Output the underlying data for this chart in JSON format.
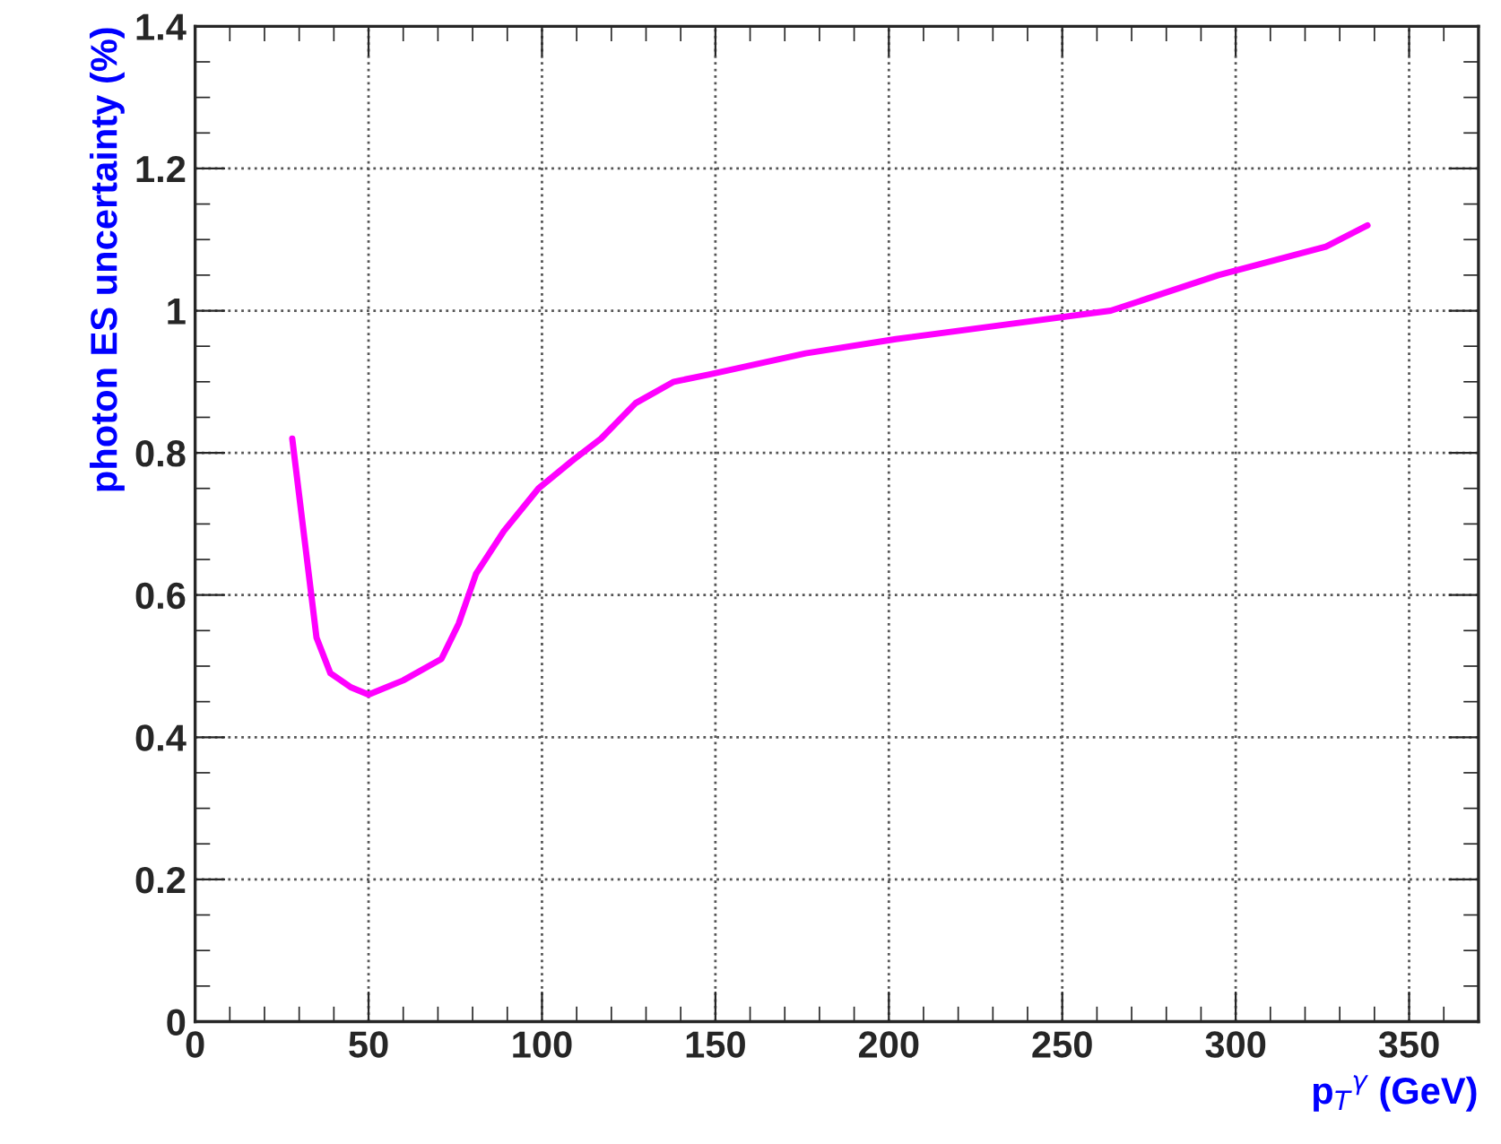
{
  "chart_data": {
    "type": "line",
    "xlabel": "p$_{T}$$^{γ}$ (GeV)",
    "ylabel": "photon ES uncertainty (%)",
    "xlim": [
      0,
      370
    ],
    "ylim": [
      0,
      1.4
    ],
    "xticks": [
      0,
      50,
      100,
      150,
      200,
      250,
      300,
      350
    ],
    "yticks": [
      0,
      0.2,
      0.4,
      0.6,
      0.8,
      1,
      1.2,
      1.4
    ],
    "grid": true,
    "marker": "none",
    "line_style": "solid",
    "series": [
      {
        "color": "#ff00ff",
        "x": [
          28,
          32,
          35,
          39,
          45,
          50,
          60,
          71,
          76,
          81,
          89,
          99,
          109,
          117,
          127,
          138,
          148,
          176,
          202,
          233,
          264,
          295,
          326,
          338
        ],
        "values": [
          0.82,
          0.66,
          0.54,
          0.49,
          0.47,
          0.46,
          0.48,
          0.51,
          0.56,
          0.63,
          0.69,
          0.75,
          0.79,
          0.82,
          0.87,
          0.9,
          0.91,
          0.94,
          0.96,
          0.98,
          1.0,
          1.05,
          1.09,
          1.12
        ]
      }
    ]
  }
}
